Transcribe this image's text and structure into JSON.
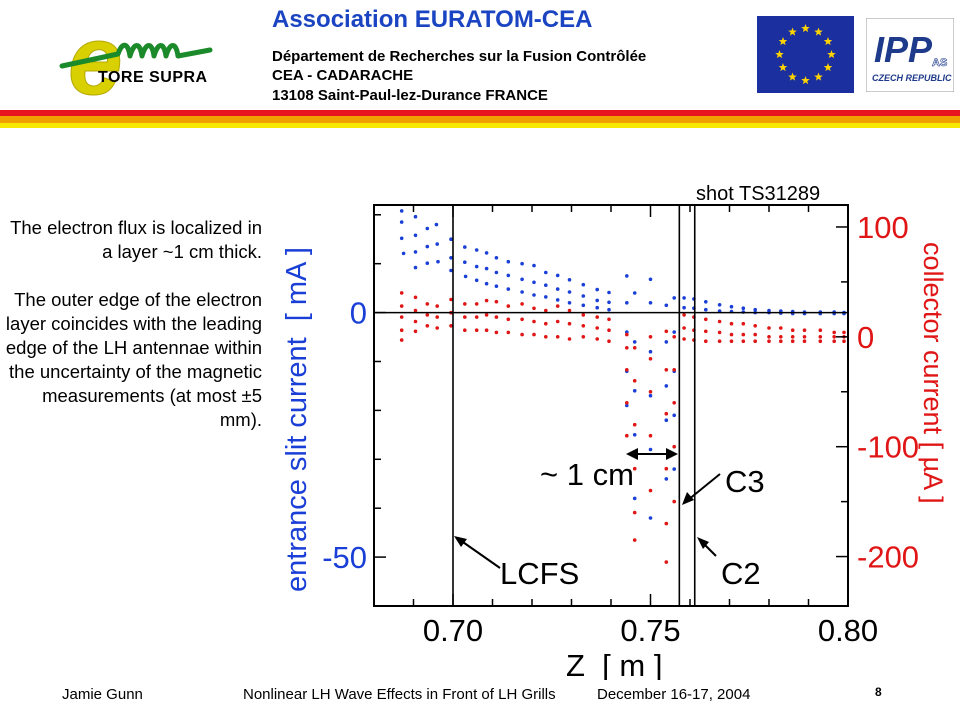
{
  "header": {
    "logo_letter": "e",
    "logo_brand": "TORE SUPRA",
    "title": "Association  EURATOM-CEA",
    "line1": "Département de Recherches sur la Fusion Contrôlée",
    "line2": "CEA - CADARACHE",
    "line3": "13108 Saint-Paul-lez-Durance   FRANCE",
    "ipp_logo_text": "IPP",
    "ipp_logo_sub": "AS",
    "ipp_logo_caption": "CZECH REPUBLIC"
  },
  "side_text": {
    "para1": "The electron flux is localized in a layer ~1 cm thick.",
    "para2": "The outer edge of the electron layer coincides with the leading edge of the LH antennae within the uncertainty of the magnetic measurements (at most ±5 mm)."
  },
  "footer": {
    "author": "Jamie Gunn",
    "title": "Nonlinear LH Wave Effects in Front of LH Grills",
    "date": "December 16-17, 2004",
    "page": "8"
  },
  "chart_data": {
    "type": "scatter",
    "title": "shot TS31289",
    "xlabel": "Z  [ m ]",
    "ylabel_left": "entrance slit current  [ mA ]",
    "ylabel_right": "collector current [ µA ]",
    "xlim": [
      0.68,
      0.8
    ],
    "x_ticks": [
      "0.70",
      "0.75",
      "0.80"
    ],
    "ylim_left": [
      -60,
      22
    ],
    "y_ticks_left": [
      "0",
      "-50"
    ],
    "ylim_right": [
      -245,
      120
    ],
    "y_ticks_right": [
      "100",
      "0",
      "-100",
      "-200"
    ],
    "colors": {
      "left_axis": "#1a3fd6",
      "right_axis": "#e01515"
    },
    "vertical_lines_x": [
      0.7,
      0.7573,
      0.7612
    ],
    "annotations": {
      "lcfs": "LCFS",
      "c3": "C3",
      "c2": "C2",
      "width": "~ 1 cm"
    },
    "series": [
      {
        "name": "entrance slit current",
        "axis": "left",
        "color": "#1a3fd6",
        "points": [
          [
            0.687,
            20.8
          ],
          [
            0.687,
            18.5
          ],
          [
            0.687,
            15.2
          ],
          [
            0.6875,
            12.1
          ],
          [
            0.6905,
            19.6
          ],
          [
            0.6905,
            15.8
          ],
          [
            0.6905,
            12.4
          ],
          [
            0.6905,
            9.2
          ],
          [
            0.6935,
            17.2
          ],
          [
            0.6935,
            13.5
          ],
          [
            0.6935,
            10.1
          ],
          [
            0.6958,
            18.0
          ],
          [
            0.696,
            14.0
          ],
          [
            0.6962,
            10.4
          ],
          [
            0.6995,
            15.0
          ],
          [
            0.6995,
            11.2
          ],
          [
            0.6995,
            8.6
          ],
          [
            0.703,
            13.4
          ],
          [
            0.703,
            10.3
          ],
          [
            0.7032,
            7.4
          ],
          [
            0.706,
            12.8
          ],
          [
            0.706,
            9.4
          ],
          [
            0.706,
            6.6
          ],
          [
            0.7085,
            12.2
          ],
          [
            0.7085,
            9.0
          ],
          [
            0.7085,
            5.9
          ],
          [
            0.711,
            11.2
          ],
          [
            0.711,
            8.2
          ],
          [
            0.711,
            5.4
          ],
          [
            0.714,
            10.4
          ],
          [
            0.714,
            7.6
          ],
          [
            0.714,
            4.8
          ],
          [
            0.7175,
            10.0
          ],
          [
            0.7175,
            6.8
          ],
          [
            0.7175,
            4.2
          ],
          [
            0.7205,
            9.6
          ],
          [
            0.7205,
            6.2
          ],
          [
            0.7205,
            3.6
          ],
          [
            0.7235,
            8.2
          ],
          [
            0.7235,
            5.6
          ],
          [
            0.7235,
            3.2
          ],
          [
            0.7265,
            7.6
          ],
          [
            0.7265,
            4.8
          ],
          [
            0.7265,
            2.6
          ],
          [
            0.7295,
            6.7
          ],
          [
            0.7295,
            4.2
          ],
          [
            0.7295,
            2.0
          ],
          [
            0.733,
            5.7
          ],
          [
            0.733,
            3.4
          ],
          [
            0.733,
            1.5
          ],
          [
            0.7365,
            4.7
          ],
          [
            0.7365,
            2.5
          ],
          [
            0.7365,
            1.0
          ],
          [
            0.7395,
            4.1
          ],
          [
            0.7395,
            2.1
          ],
          [
            0.7395,
            0.6
          ],
          [
            0.744,
            7.5
          ],
          [
            0.744,
            2.0
          ],
          [
            0.744,
            -4.0
          ],
          [
            0.744,
            -12.0
          ],
          [
            0.744,
            -19.0
          ],
          [
            0.746,
            4.0
          ],
          [
            0.746,
            -6.0
          ],
          [
            0.746,
            -16.0
          ],
          [
            0.746,
            -25.0
          ],
          [
            0.746,
            -38.0
          ],
          [
            0.75,
            6.8
          ],
          [
            0.75,
            2.0
          ],
          [
            0.75,
            -8.0
          ],
          [
            0.75,
            -17.0
          ],
          [
            0.75,
            -28.0
          ],
          [
            0.75,
            -42.0
          ],
          [
            0.754,
            1.5
          ],
          [
            0.754,
            -6.0
          ],
          [
            0.754,
            -15.0
          ],
          [
            0.754,
            -22.0
          ],
          [
            0.754,
            -34.0
          ],
          [
            0.756,
            3.0
          ],
          [
            0.756,
            -4.0
          ],
          [
            0.756,
            -12.0
          ],
          [
            0.756,
            -21.0
          ],
          [
            0.756,
            -32.0
          ],
          [
            0.7585,
            3.0
          ],
          [
            0.7585,
            1.0
          ],
          [
            0.761,
            2.8
          ],
          [
            0.761,
            0.9
          ],
          [
            0.764,
            2.2
          ],
          [
            0.764,
            0.6
          ],
          [
            0.7675,
            1.6
          ],
          [
            0.7675,
            0.3
          ],
          [
            0.7705,
            1.2
          ],
          [
            0.7705,
            0.2
          ],
          [
            0.7735,
            0.9
          ],
          [
            0.7735,
            0.1
          ],
          [
            0.7765,
            0.6
          ],
          [
            0.7765,
            0.0
          ],
          [
            0.78,
            0.4
          ],
          [
            0.78,
            0.0
          ],
          [
            0.783,
            0.3
          ],
          [
            0.783,
            -0.1
          ],
          [
            0.786,
            0.2
          ],
          [
            0.786,
            -0.2
          ],
          [
            0.789,
            0.1
          ],
          [
            0.789,
            -0.2
          ],
          [
            0.793,
            0.1
          ],
          [
            0.793,
            -0.2
          ],
          [
            0.7965,
            0.1
          ],
          [
            0.7965,
            -0.2
          ],
          [
            0.799,
            0.0
          ],
          [
            0.799,
            -0.2
          ]
        ]
      },
      {
        "name": "collector current",
        "axis": "right",
        "color": "#e01515",
        "points": [
          [
            0.687,
            40.0
          ],
          [
            0.687,
            28.0
          ],
          [
            0.687,
            18.0
          ],
          [
            0.687,
            6.0
          ],
          [
            0.687,
            -3.0
          ],
          [
            0.6905,
            36.0
          ],
          [
            0.6905,
            24.0
          ],
          [
            0.6905,
            14.0
          ],
          [
            0.6905,
            5.0
          ],
          [
            0.6935,
            30.0
          ],
          [
            0.6935,
            20.0
          ],
          [
            0.6935,
            10.0
          ],
          [
            0.696,
            28.0
          ],
          [
            0.696,
            18.0
          ],
          [
            0.696,
            8.0
          ],
          [
            0.6995,
            34.0
          ],
          [
            0.6995,
            22.0
          ],
          [
            0.6995,
            10.0
          ],
          [
            0.703,
            30.0
          ],
          [
            0.703,
            18.0
          ],
          [
            0.703,
            6.0
          ],
          [
            0.706,
            30.0
          ],
          [
            0.706,
            18.0
          ],
          [
            0.706,
            6.0
          ],
          [
            0.7085,
            33.0
          ],
          [
            0.7085,
            20.0
          ],
          [
            0.7085,
            6.0
          ],
          [
            0.711,
            32.0
          ],
          [
            0.711,
            18.0
          ],
          [
            0.711,
            4.0
          ],
          [
            0.714,
            28.0
          ],
          [
            0.714,
            16.0
          ],
          [
            0.714,
            4.0
          ],
          [
            0.7175,
            30.0
          ],
          [
            0.7175,
            16.0
          ],
          [
            0.7175,
            2.0
          ],
          [
            0.7205,
            26.0
          ],
          [
            0.7205,
            14.0
          ],
          [
            0.7205,
            2.0
          ],
          [
            0.7235,
            24.0
          ],
          [
            0.7235,
            12.0
          ],
          [
            0.7235,
            0.0
          ],
          [
            0.7265,
            28.0
          ],
          [
            0.7265,
            14.0
          ],
          [
            0.7265,
            0.0
          ],
          [
            0.7295,
            24.0
          ],
          [
            0.7295,
            12.0
          ],
          [
            0.7295,
            -2.0
          ],
          [
            0.733,
            20.0
          ],
          [
            0.733,
            10.0
          ],
          [
            0.733,
            0.0
          ],
          [
            0.7365,
            18.0
          ],
          [
            0.7365,
            8.0
          ],
          [
            0.7365,
            -2.0
          ],
          [
            0.7395,
            16.0
          ],
          [
            0.7395,
            6.0
          ],
          [
            0.7395,
            -4.0
          ],
          [
            0.744,
            2.0
          ],
          [
            0.744,
            -10.0
          ],
          [
            0.744,
            -30.0
          ],
          [
            0.744,
            -60.0
          ],
          [
            0.744,
            -90.0
          ],
          [
            0.746,
            -10.0
          ],
          [
            0.746,
            -40.0
          ],
          [
            0.746,
            -80.0
          ],
          [
            0.746,
            -120.0
          ],
          [
            0.746,
            -160.0
          ],
          [
            0.746,
            -185.0
          ],
          [
            0.75,
            0.0
          ],
          [
            0.75,
            -20.0
          ],
          [
            0.75,
            -50.0
          ],
          [
            0.75,
            -90.0
          ],
          [
            0.75,
            -140.0
          ],
          [
            0.754,
            5.0
          ],
          [
            0.754,
            -30.0
          ],
          [
            0.754,
            -70.0
          ],
          [
            0.754,
            -120.0
          ],
          [
            0.754,
            -170.0
          ],
          [
            0.754,
            -205.0
          ],
          [
            0.756,
            0.0
          ],
          [
            0.756,
            -30.0
          ],
          [
            0.756,
            -60.0
          ],
          [
            0.756,
            -100.0
          ],
          [
            0.756,
            -150.0
          ],
          [
            0.7585,
            20.0
          ],
          [
            0.7585,
            8.0
          ],
          [
            0.7585,
            -2.0
          ],
          [
            0.761,
            18.0
          ],
          [
            0.761,
            6.0
          ],
          [
            0.761,
            -3.0
          ],
          [
            0.764,
            16.0
          ],
          [
            0.764,
            5.0
          ],
          [
            0.764,
            -4.0
          ],
          [
            0.7675,
            14.0
          ],
          [
            0.7675,
            4.0
          ],
          [
            0.7675,
            -4.0
          ],
          [
            0.7705,
            12.0
          ],
          [
            0.7705,
            2.0
          ],
          [
            0.7705,
            -4.0
          ],
          [
            0.7735,
            12.0
          ],
          [
            0.7735,
            2.0
          ],
          [
            0.7735,
            -4.0
          ],
          [
            0.7765,
            10.0
          ],
          [
            0.7765,
            2.0
          ],
          [
            0.7765,
            -4.0
          ],
          [
            0.78,
            8.0
          ],
          [
            0.78,
            0.0
          ],
          [
            0.78,
            -4.0
          ],
          [
            0.783,
            8.0
          ],
          [
            0.783,
            0.0
          ],
          [
            0.783,
            -4.0
          ],
          [
            0.786,
            6.0
          ],
          [
            0.786,
            0.0
          ],
          [
            0.786,
            -4.0
          ],
          [
            0.789,
            6.0
          ],
          [
            0.789,
            0.0
          ],
          [
            0.789,
            -4.0
          ],
          [
            0.793,
            6.0
          ],
          [
            0.793,
            0.0
          ],
          [
            0.793,
            -4.0
          ],
          [
            0.7965,
            4.0
          ],
          [
            0.7965,
            0.0
          ],
          [
            0.7965,
            -4.0
          ],
          [
            0.799,
            4.0
          ],
          [
            0.799,
            0.0
          ],
          [
            0.799,
            -4.0
          ]
        ]
      }
    ]
  }
}
